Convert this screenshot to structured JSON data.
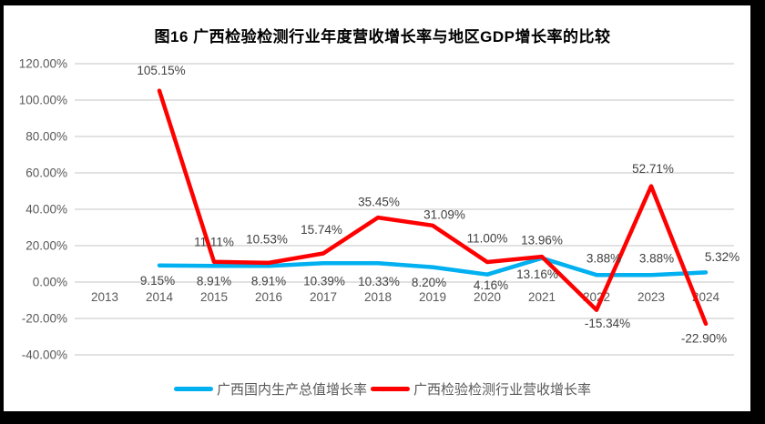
{
  "chart_data": {
    "type": "line",
    "title": "图16 广西检验检测行业年度营收增长率与地区GDP增长率的比较",
    "categories": [
      "2013",
      "2014",
      "2015",
      "2016",
      "2017",
      "2018",
      "2019",
      "2020",
      "2021",
      "2022",
      "2023",
      "2024"
    ],
    "series": [
      {
        "name": "广西国内生产总值增长率",
        "color": "#00B0F0",
        "values": [
          null,
          9.15,
          8.91,
          8.91,
          10.39,
          10.33,
          8.2,
          4.16,
          13.16,
          3.88,
          3.88,
          5.32
        ],
        "labels": [
          "",
          "9.15%",
          "8.91%",
          "8.91%",
          "10.39%",
          "10.33%",
          "8.20%",
          "4.16%",
          "13.16%",
          "3.88%",
          "3.88%",
          "5.32%"
        ],
        "label_offsets": [
          [
            0,
            0
          ],
          [
            -2,
            17
          ],
          [
            0,
            17
          ],
          [
            0,
            17
          ],
          [
            1,
            20
          ],
          [
            1,
            20
          ],
          [
            -4,
            17
          ],
          [
            4,
            12
          ],
          [
            -5,
            18
          ],
          [
            8,
            -18
          ],
          [
            6,
            -18
          ],
          [
            18,
            -17
          ]
        ]
      },
      {
        "name": "广西检验检测行业营收增长率",
        "color": "#FF0000",
        "values": [
          null,
          105.15,
          11.11,
          10.53,
          15.74,
          35.45,
          31.09,
          11.0,
          13.96,
          -15.34,
          52.71,
          -22.9
        ],
        "labels": [
          "",
          "105.15%",
          "11.11%",
          "10.53%",
          "15.74%",
          "35.45%",
          "31.09%",
          "11.00%",
          "13.96%",
          "-15.34%",
          "52.71%",
          "-22.90%"
        ],
        "label_offsets": [
          [
            0,
            0
          ],
          [
            2,
            -22
          ],
          [
            0,
            -22
          ],
          [
            -2,
            -26
          ],
          [
            -2,
            -26
          ],
          [
            1,
            -17
          ],
          [
            13,
            -12
          ],
          [
            0,
            -26
          ],
          [
            0,
            -18
          ],
          [
            12,
            15
          ],
          [
            2,
            -19
          ],
          [
            -2,
            16
          ]
        ]
      }
    ],
    "y_axis": {
      "tick_labels": [
        "120.00%",
        "100.00%",
        "80.00%",
        "60.00%",
        "40.00%",
        "20.00%",
        "0.00%",
        "-20.00%",
        "-40.00%"
      ],
      "tick_values": [
        120,
        100,
        80,
        60,
        40,
        20,
        0,
        -20,
        -40
      ],
      "ylim": [
        -40,
        120
      ]
    },
    "grid": true,
    "legend_position": "bottom"
  },
  "style": {
    "accent_blue": "#00B0F0",
    "accent_red": "#FF0000",
    "grid_color": "#D9D9D9",
    "tick_label_color": "#595959",
    "data_label_color": "#404040",
    "frame_color": "#000000",
    "background": "#FFFFFF"
  }
}
